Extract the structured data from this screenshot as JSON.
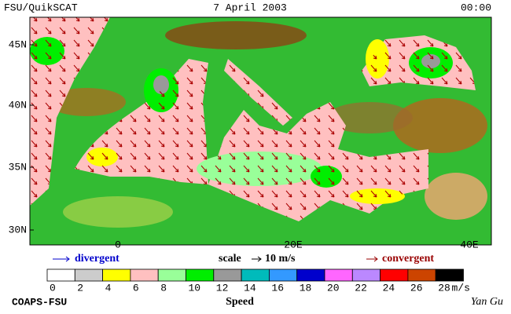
{
  "header": {
    "source": "FSU/QuikSCAT",
    "date": "7 April 2003",
    "time": "00:00"
  },
  "map": {
    "lat_labels": [
      "45N",
      "40N",
      "35N",
      "30N"
    ],
    "lon_labels": [
      "0",
      "20E",
      "40E"
    ]
  },
  "legend": {
    "divergent": "divergent",
    "scale": "scale",
    "scale_value": "10 m/s",
    "convergent": "convergent",
    "divergent_color": "#0000cc",
    "convergent_color": "#990000"
  },
  "colorbar": {
    "ticks": [
      0,
      2,
      4,
      6,
      8,
      10,
      12,
      14,
      16,
      18,
      20,
      22,
      24,
      26,
      28
    ],
    "colors": [
      "#ffffff",
      "#cccccc",
      "#ffff00",
      "#ffc0c0",
      "#99ff99",
      "#00ee00",
      "#999999",
      "#00bbbb",
      "#3399ff",
      "#0000cc",
      "#ff66ff",
      "#bb88ff",
      "#ff0000",
      "#cc4400",
      "#000000"
    ],
    "unit": "m/s",
    "label": "Speed"
  },
  "footer": {
    "credit": "COAPS-FSU",
    "signature": "Yan Gu"
  }
}
